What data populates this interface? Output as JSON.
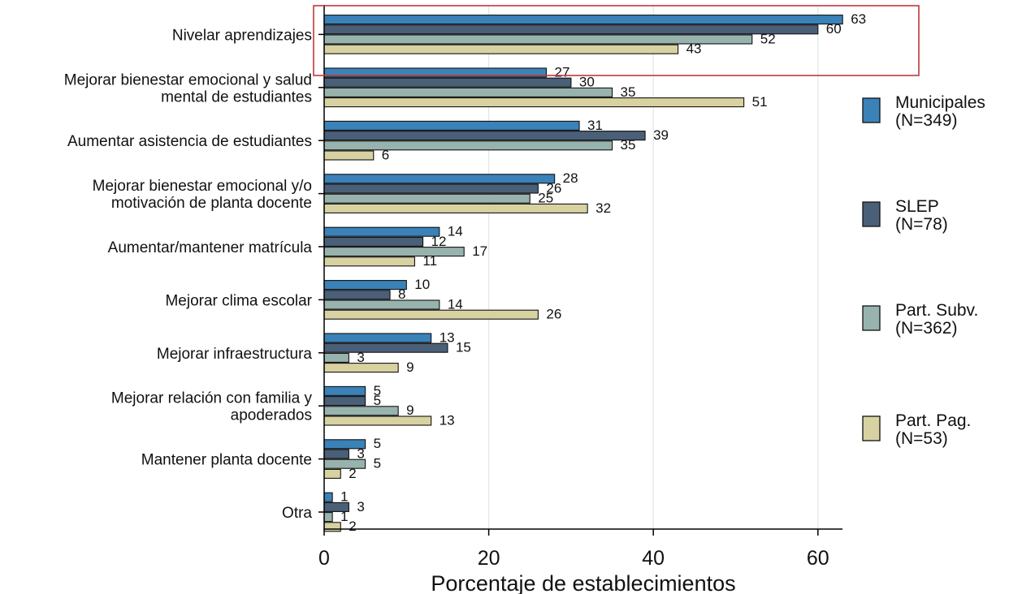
{
  "chart_data": {
    "type": "bar",
    "orientation": "horizontal",
    "xlabel": "Porcentaje de establecimientos",
    "ylabel": "",
    "xlim": [
      0,
      63
    ],
    "xticks": [
      0,
      20,
      40,
      60
    ],
    "grid": true,
    "legend_position": "right",
    "categories": [
      [
        "Nivelar aprendizajes"
      ],
      [
        "Mejorar bienestar emocional y salud",
        "mental de estudiantes"
      ],
      [
        "Aumentar asistencia de estudiantes"
      ],
      [
        "Mejorar bienestar emocional y/o",
        "motivación de planta docente"
      ],
      [
        "Aumentar/mantener matrícula"
      ],
      [
        "Mejorar clima escolar"
      ],
      [
        "Mejorar infraestructura"
      ],
      [
        "Mejorar relación con familia y",
        "apoderados"
      ],
      [
        "Mantener planta docente"
      ],
      [
        "Otra"
      ]
    ],
    "series": [
      {
        "name": [
          "Municipales",
          "(N=349)"
        ],
        "color": "#3a82b8",
        "values": [
          63,
          27,
          31,
          28,
          14,
          10,
          13,
          5,
          5,
          1
        ]
      },
      {
        "name": [
          "SLEP",
          "(N=78)"
        ],
        "color": "#4a5f78",
        "values": [
          60,
          30,
          39,
          26,
          12,
          8,
          15,
          5,
          3,
          3
        ]
      },
      {
        "name": [
          "Part. Subv.",
          "(N=362)"
        ],
        "color": "#98b3ae",
        "values": [
          52,
          35,
          35,
          25,
          17,
          14,
          3,
          9,
          5,
          1
        ]
      },
      {
        "name": [
          "Part. Pag.",
          "(N=53)"
        ],
        "color": "#d8d2a2",
        "values": [
          43,
          51,
          6,
          32,
          11,
          26,
          9,
          13,
          2,
          2
        ]
      }
    ],
    "highlight": {
      "category_index": 0,
      "color": "#c0393b"
    }
  }
}
